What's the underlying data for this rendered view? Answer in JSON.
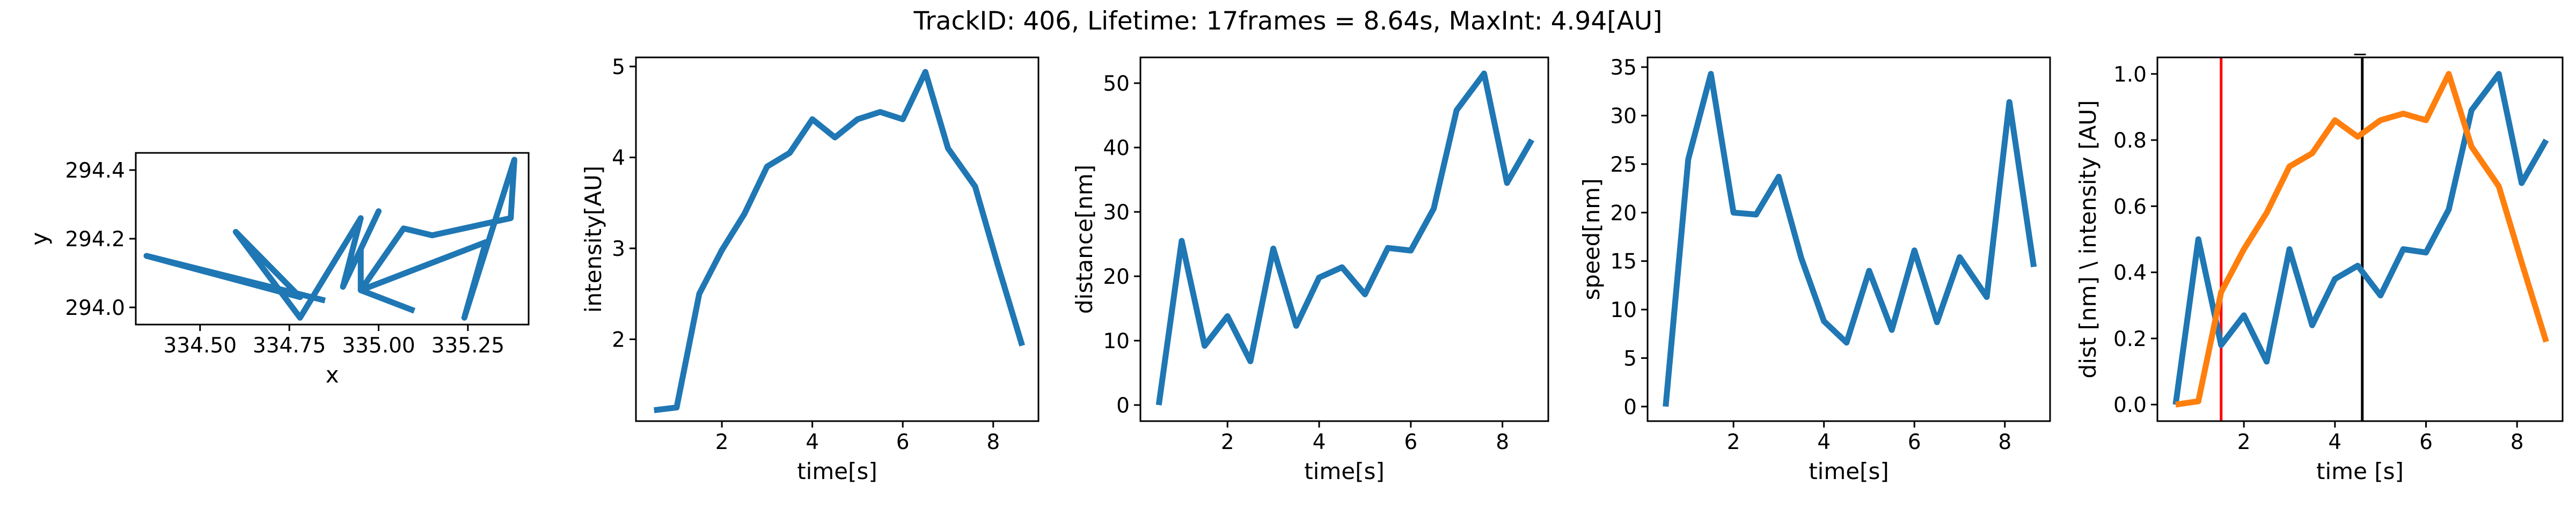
{
  "figure_title": "TrackID: 406, Lifetime: 17frames = 8.64s, MaxInt: 4.94[AU]",
  "colors": {
    "blue": "#1f77b4",
    "orange": "#ff7f0e",
    "red": "#ff0000",
    "black": "#000000"
  },
  "chart_data": [
    {
      "id": "trajectory",
      "type": "line",
      "xlabel": "x",
      "ylabel": "y",
      "xlim": [
        334.32,
        335.42
      ],
      "ylim": [
        293.95,
        294.45
      ],
      "xticks": [
        334.5,
        334.75,
        335.0,
        335.25
      ],
      "xtick_labels": [
        "334.50",
        "334.75",
        "335.00",
        "335.25"
      ],
      "yticks": [
        294.0,
        294.2,
        294.4
      ],
      "ytick_labels": [
        "294.0",
        "294.2",
        "294.4"
      ],
      "series": [
        {
          "color": "#1f77b4",
          "x": [
            334.85,
            334.35,
            334.78,
            334.6,
            334.78,
            334.95,
            334.9,
            335.0,
            334.95,
            334.95,
            335.07,
            335.15,
            335.37,
            335.38,
            335.24,
            335.3,
            334.95,
            335.1
          ],
          "y": [
            294.02,
            294.15,
            294.03,
            294.22,
            293.97,
            294.26,
            294.06,
            294.28,
            294.17,
            294.05,
            294.23,
            294.21,
            294.26,
            294.43,
            293.97,
            294.19,
            294.05,
            293.99
          ]
        }
      ]
    },
    {
      "id": "intensity",
      "type": "line",
      "xlabel": "time[s]",
      "ylabel": "intensity[AU]",
      "xlim": [
        0.1,
        9.0
      ],
      "ylim": [
        1.1,
        5.1
      ],
      "xticks": [
        2,
        4,
        6,
        8
      ],
      "xtick_labels": [
        "2",
        "4",
        "6",
        "8"
      ],
      "yticks": [
        2,
        3,
        4,
        5
      ],
      "ytick_labels": [
        "2",
        "3",
        "4",
        "5"
      ],
      "series": [
        {
          "color": "#1f77b4",
          "x": [
            0.5,
            1.0,
            1.5,
            2.0,
            2.5,
            3.0,
            3.5,
            4.0,
            4.5,
            5.0,
            5.5,
            6.0,
            6.5,
            7.0,
            7.6,
            8.1,
            8.64
          ],
          "y": [
            1.22,
            1.25,
            2.5,
            2.98,
            3.38,
            3.9,
            4.05,
            4.42,
            4.22,
            4.42,
            4.5,
            4.42,
            4.94,
            4.1,
            3.68,
            2.82,
            1.93
          ]
        }
      ]
    },
    {
      "id": "distance",
      "type": "line",
      "xlabel": "time[s]",
      "ylabel": "distance[nm]",
      "xlim": [
        0.1,
        9.0
      ],
      "ylim": [
        -2.5,
        54
      ],
      "xticks": [
        2,
        4,
        6,
        8
      ],
      "xtick_labels": [
        "2",
        "4",
        "6",
        "8"
      ],
      "yticks": [
        0,
        10,
        20,
        30,
        40,
        50
      ],
      "ytick_labels": [
        "0",
        "10",
        "20",
        "30",
        "40",
        "50"
      ],
      "series": [
        {
          "color": "#1f77b4",
          "x": [
            0.5,
            1.0,
            1.5,
            2.0,
            2.5,
            3.0,
            3.5,
            4.0,
            4.5,
            5.0,
            5.5,
            6.0,
            6.5,
            7.0,
            7.6,
            8.1,
            8.64
          ],
          "y": [
            0,
            25.5,
            9.2,
            13.8,
            6.8,
            24.3,
            12.3,
            19.8,
            21.4,
            17.2,
            24.4,
            24.0,
            30.5,
            45.8,
            51.5,
            34.5,
            41.2
          ]
        }
      ]
    },
    {
      "id": "speed",
      "type": "line",
      "xlabel": "time[s]",
      "ylabel": "speed[nm]",
      "xlim": [
        0.1,
        9.0
      ],
      "ylim": [
        -1.5,
        36
      ],
      "xticks": [
        2,
        4,
        6,
        8
      ],
      "xtick_labels": [
        "2",
        "4",
        "6",
        "8"
      ],
      "yticks": [
        0,
        5,
        10,
        15,
        20,
        25,
        30,
        35
      ],
      "ytick_labels": [
        "0",
        "5",
        "10",
        "15",
        "20",
        "25",
        "30",
        "35"
      ],
      "series": [
        {
          "color": "#1f77b4",
          "x": [
            0.5,
            1.0,
            1.5,
            2.0,
            2.5,
            3.0,
            3.5,
            4.0,
            4.5,
            5.0,
            5.5,
            6.0,
            6.5,
            7.0,
            7.6,
            8.1,
            8.64
          ],
          "y": [
            0,
            25.5,
            34.3,
            20.0,
            19.8,
            23.7,
            15.3,
            8.8,
            6.6,
            14.0,
            7.9,
            16.1,
            8.7,
            15.4,
            11.3,
            31.4,
            14.4
          ]
        }
      ]
    },
    {
      "id": "normalized",
      "type": "line",
      "title": "_",
      "xlabel": "time [s]",
      "ylabel": "dist [nm] \\ intensity [AU]",
      "xlim": [
        0.1,
        9.0
      ],
      "ylim": [
        -0.05,
        1.05
      ],
      "xticks": [
        2,
        4,
        6,
        8
      ],
      "xtick_labels": [
        "2",
        "4",
        "6",
        "8"
      ],
      "yticks": [
        0.0,
        0.2,
        0.4,
        0.6,
        0.8,
        1.0
      ],
      "ytick_labels": [
        "0.0",
        "0.2",
        "0.4",
        "0.6",
        "0.8",
        "1.0"
      ],
      "vlines": [
        {
          "x": 1.5,
          "color": "#ff0000"
        },
        {
          "x": 4.6,
          "color": "#000000"
        }
      ],
      "series": [
        {
          "color": "#1f77b4",
          "x": [
            0.5,
            1.0,
            1.5,
            2.0,
            2.5,
            3.0,
            3.5,
            4.0,
            4.5,
            5.0,
            5.5,
            6.0,
            6.5,
            7.0,
            7.6,
            8.1,
            8.64
          ],
          "y": [
            0,
            0.5,
            0.18,
            0.27,
            0.13,
            0.47,
            0.24,
            0.38,
            0.42,
            0.33,
            0.47,
            0.46,
            0.59,
            0.89,
            1.0,
            0.67,
            0.8
          ]
        },
        {
          "color": "#ff7f0e",
          "x": [
            0.5,
            1.0,
            1.5,
            2.0,
            2.5,
            3.0,
            3.5,
            4.0,
            4.5,
            5.0,
            5.5,
            6.0,
            6.5,
            7.0,
            7.6,
            8.1,
            8.64
          ],
          "y": [
            0,
            0.01,
            0.34,
            0.47,
            0.58,
            0.72,
            0.76,
            0.86,
            0.81,
            0.86,
            0.88,
            0.86,
            1.0,
            0.78,
            0.66,
            0.43,
            0.19
          ]
        }
      ]
    }
  ]
}
